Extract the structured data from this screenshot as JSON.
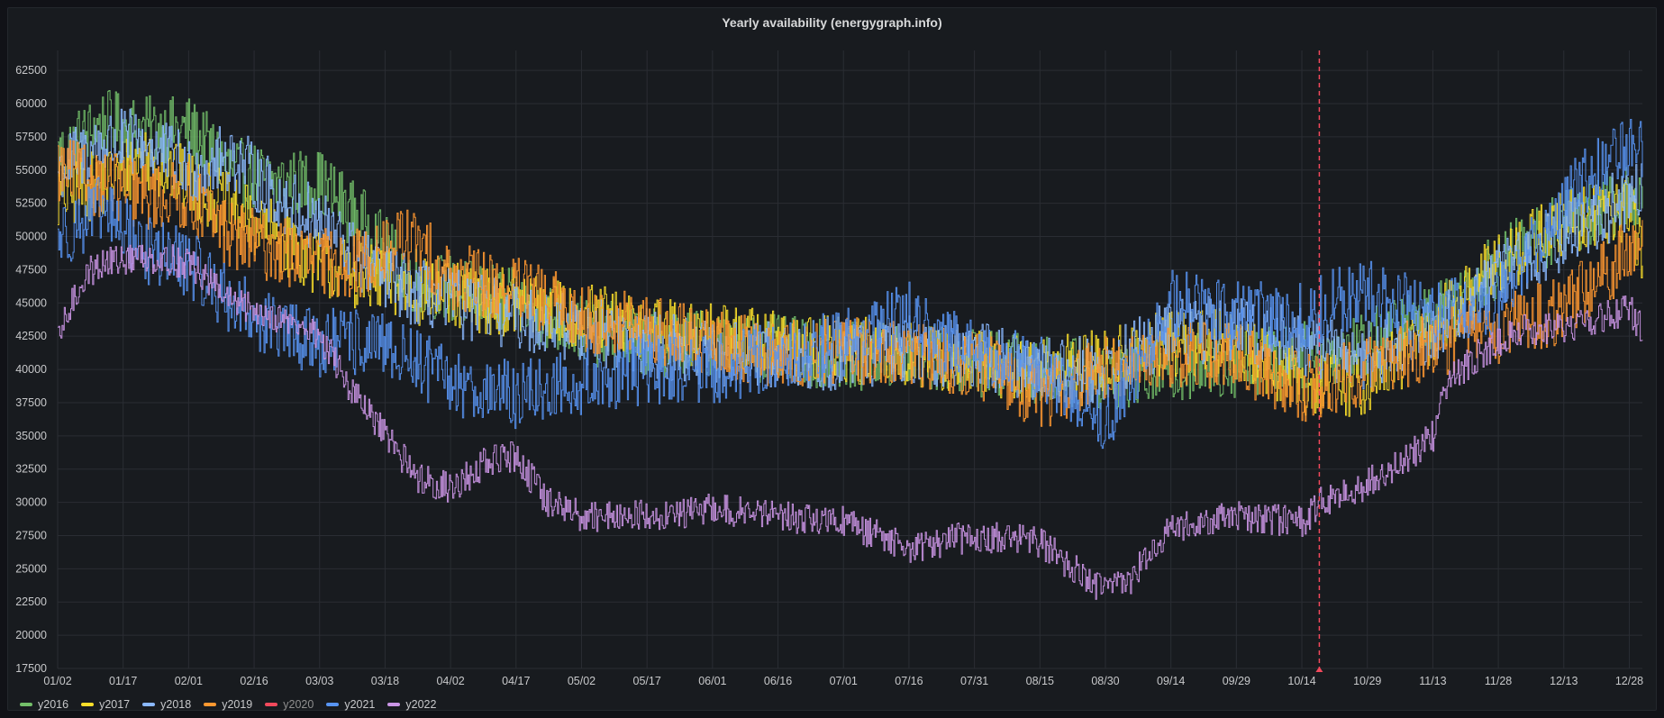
{
  "chart_data": {
    "type": "line",
    "title": "Yearly availability (energygraph.info)",
    "xlabel": "",
    "ylabel": "",
    "ylim": [
      17500,
      64000
    ],
    "yticks": [
      17500,
      20000,
      22500,
      25000,
      27500,
      30000,
      32500,
      35000,
      37500,
      40000,
      42500,
      45000,
      47500,
      50000,
      52500,
      55000,
      57500,
      60000,
      62500
    ],
    "xlim": [
      2,
      365
    ],
    "x_ticks": [
      {
        "label": "01/02",
        "day": 2
      },
      {
        "label": "01/17",
        "day": 17
      },
      {
        "label": "02/01",
        "day": 32
      },
      {
        "label": "02/16",
        "day": 47
      },
      {
        "label": "03/03",
        "day": 62
      },
      {
        "label": "03/18",
        "day": 77
      },
      {
        "label": "04/02",
        "day": 92
      },
      {
        "label": "04/17",
        "day": 107
      },
      {
        "label": "05/02",
        "day": 122
      },
      {
        "label": "05/17",
        "day": 137
      },
      {
        "label": "06/01",
        "day": 152
      },
      {
        "label": "06/16",
        "day": 167
      },
      {
        "label": "07/01",
        "day": 182
      },
      {
        "label": "07/16",
        "day": 197
      },
      {
        "label": "07/31",
        "day": 212
      },
      {
        "label": "08/15",
        "day": 227
      },
      {
        "label": "08/30",
        "day": 242
      },
      {
        "label": "09/14",
        "day": 257
      },
      {
        "label": "09/29",
        "day": 272
      },
      {
        "label": "10/14",
        "day": 287
      },
      {
        "label": "10/29",
        "day": 302
      },
      {
        "label": "11/13",
        "day": 317
      },
      {
        "label": "11/28",
        "day": 332
      },
      {
        "label": "12/13",
        "day": 347
      },
      {
        "label": "12/28",
        "day": 362
      }
    ],
    "current_day_marker": 291,
    "series": [
      {
        "name": "y2016",
        "color": "#73bf69",
        "visible": true,
        "x": [
          2,
          12,
          22,
          32,
          42,
          52,
          62,
          72,
          82,
          92,
          107,
          122,
          137,
          152,
          167,
          182,
          197,
          212,
          227,
          242,
          257,
          272,
          287,
          302,
          317,
          332,
          347,
          362,
          365
        ],
        "values": [
          56000,
          58500,
          58000,
          58000,
          55000,
          54000,
          54000,
          51000,
          47000,
          46000,
          45000,
          43000,
          42000,
          42000,
          41500,
          41000,
          41000,
          40500,
          40000,
          39500,
          40000,
          40500,
          41000,
          42000,
          44000,
          48000,
          51000,
          53000,
          53000
        ]
      },
      {
        "name": "y2017",
        "color": "#fade2a",
        "visible": true,
        "x": [
          2,
          12,
          22,
          32,
          42,
          52,
          62,
          72,
          82,
          92,
          107,
          122,
          137,
          152,
          167,
          182,
          197,
          212,
          227,
          242,
          257,
          272,
          287,
          302,
          317,
          332,
          347,
          362,
          365
        ],
        "values": [
          53000,
          54000,
          56000,
          54000,
          52000,
          50000,
          48000,
          47000,
          46000,
          45500,
          45000,
          44000,
          43000,
          42500,
          42000,
          41500,
          41000,
          40500,
          40000,
          40500,
          42000,
          42000,
          39000,
          39000,
          43000,
          48000,
          51000,
          52000,
          48000
        ]
      },
      {
        "name": "y2018",
        "color": "#8ab8ff",
        "visible": true,
        "x": [
          2,
          12,
          22,
          32,
          42,
          52,
          62,
          72,
          82,
          92,
          107,
          122,
          137,
          152,
          167,
          182,
          197,
          212,
          227,
          242,
          257,
          272,
          287,
          302,
          317,
          332,
          347,
          362,
          365
        ],
        "values": [
          55000,
          57000,
          57000,
          55000,
          56000,
          53000,
          51000,
          48000,
          46000,
          45000,
          44000,
          43000,
          42000,
          41000,
          41000,
          41000,
          41500,
          41000,
          40000,
          40000,
          43000,
          43000,
          42000,
          41000,
          43000,
          47000,
          50000,
          53000,
          54000
        ]
      },
      {
        "name": "y2019",
        "color": "#ff9830",
        "visible": true,
        "x": [
          2,
          12,
          22,
          32,
          42,
          52,
          62,
          72,
          82,
          92,
          107,
          122,
          137,
          152,
          167,
          182,
          197,
          212,
          227,
          242,
          257,
          272,
          287,
          302,
          317,
          332,
          347,
          362,
          365
        ],
        "values": [
          55000,
          54000,
          53000,
          53000,
          50000,
          49000,
          48000,
          48000,
          50000,
          47000,
          46000,
          44000,
          43000,
          42000,
          41000,
          41500,
          41000,
          40500,
          38000,
          40000,
          41000,
          41000,
          38500,
          40000,
          42000,
          43000,
          44500,
          49000,
          50000
        ]
      },
      {
        "name": "y2020",
        "color": "#f2495c",
        "visible": false,
        "x": [],
        "values": []
      },
      {
        "name": "y2021",
        "color": "#5794f2",
        "visible": true,
        "x": [
          2,
          12,
          22,
          32,
          42,
          52,
          62,
          72,
          82,
          92,
          107,
          122,
          137,
          152,
          167,
          182,
          197,
          212,
          227,
          242,
          257,
          272,
          287,
          302,
          317,
          332,
          347,
          362,
          365
        ],
        "values": [
          50000,
          52000,
          49000,
          48000,
          45000,
          43000,
          42000,
          42000,
          41000,
          39000,
          38000,
          39000,
          40000,
          40000,
          41000,
          42000,
          44000,
          41000,
          40000,
          36000,
          45000,
          44000,
          44000,
          46000,
          44000,
          45000,
          53000,
          57000,
          57000
        ]
      },
      {
        "name": "y2022",
        "color": "#ca95e5",
        "visible": true,
        "x": [
          2,
          4,
          8,
          12,
          22,
          32,
          42,
          52,
          62,
          70,
          77,
          84,
          92,
          100,
          107,
          114,
          122,
          137,
          152,
          167,
          182,
          197,
          212,
          227,
          240,
          247,
          257,
          272,
          287,
          291,
          300,
          310,
          317,
          320,
          327,
          337,
          347,
          357,
          362,
          365
        ],
        "values": [
          42000,
          44000,
          47000,
          48000,
          48500,
          48000,
          45000,
          44000,
          42500,
          38000,
          35000,
          32000,
          31000,
          33000,
          33500,
          30000,
          29000,
          29000,
          29500,
          29000,
          28500,
          26500,
          27500,
          27000,
          23500,
          24000,
          28000,
          29000,
          28500,
          30000,
          31000,
          33000,
          35000,
          39000,
          41000,
          43000,
          43000,
          44000,
          44500,
          43000
        ]
      }
    ]
  }
}
